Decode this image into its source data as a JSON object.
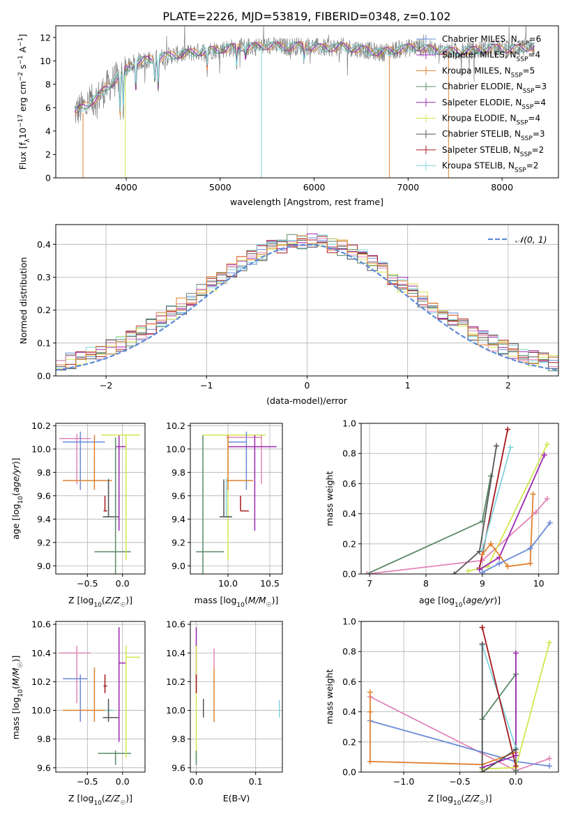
{
  "title": "PLATE=2226, MJD=53819, FIBERID=0348, z=0.102",
  "colors": {
    "chabrier_miles": "#6a8ad8",
    "salpeter_miles": "#a332c8",
    "kroupa_miles": "#e0812e",
    "chabrier_elodie": "#5a8a66",
    "salpeter_elodie": "#9b27b0",
    "kroupa_elodie": "#d4e64e",
    "chabrier_stelib": "#555555",
    "salpeter_stelib": "#a4161a",
    "kroupa_stelib": "#7fd4dc",
    "pink": "#e384b8",
    "gaussian": "#5b8bd9"
  },
  "chart_data": [
    {
      "id": "spectrum",
      "type": "line",
      "xlabel": "wavelength [Angstrom, rest frame]",
      "ylabel": "Flux [f_λ10^-17 erg cm^-2 s^-1 A^-1]",
      "xlim": [
        3250,
        8600
      ],
      "ylim": [
        0,
        13
      ],
      "xticks": [
        "4000",
        "5000",
        "6000",
        "7000",
        "8000"
      ],
      "yticks": [
        "0",
        "2",
        "4",
        "6",
        "8",
        "10",
        "12"
      ],
      "legend_position": "right",
      "legend": [
        "Chabrier MILES, N_SSP=6",
        "Salpeter MILES, N_SSP=4",
        "Kroupa MILES, N_SSP=5",
        "Chabrier ELODIE, N_SSP=3",
        "Salpeter ELODIE, N_SSP=4",
        "Kroupa ELODIE, N_SSP=4",
        "Chabrier STELIB, N_SSP=3",
        "Salpeter STELIB, N_SSP=2",
        "Kroupa STELIB, N_SSP=2"
      ],
      "continuum": {
        "x": [
          3450,
          3550,
          3700,
          3800,
          3900,
          4000,
          4100,
          4300,
          4500,
          4700,
          4900,
          5100,
          5300,
          5500,
          5700,
          5900,
          6100,
          6300,
          6500,
          6700,
          6900,
          7100,
          7300,
          7500,
          7700,
          7900,
          8100,
          8300
        ],
        "y": [
          5.6,
          6.1,
          6.9,
          7.8,
          8.5,
          9.3,
          9.9,
          10.2,
          10.5,
          10.7,
          10.9,
          11.1,
          11.2,
          11.3,
          11.2,
          11.3,
          11.1,
          11.2,
          11.0,
          10.7,
          11.0,
          11.2,
          10.9,
          10.8,
          10.9,
          11.1,
          11.0,
          11.2
        ]
      }
    },
    {
      "id": "residuals",
      "type": "line",
      "xlabel": "(data-model)/error",
      "ylabel": "Normed distribution",
      "xlim": [
        -2.5,
        2.5
      ],
      "ylim": [
        0,
        0.46
      ],
      "xticks": [
        "−2",
        "−1",
        "0",
        "1",
        "2"
      ],
      "yticks": [
        "0.0",
        "0.1",
        "0.2",
        "0.3",
        "0.4"
      ],
      "legend": [
        "𝒩(0, 1)"
      ],
      "gaussian": {
        "mean": 0,
        "sigma": 1
      }
    },
    {
      "id": "age_vs_Z",
      "type": "errorbar",
      "xlabel": "Z [log10(Z/Z☉)]",
      "ylabel": "age  [log10(age/yr)]",
      "xlim": [
        -0.95,
        0.32
      ],
      "ylim": [
        8.93,
        10.22
      ],
      "xticks": [
        -0.5,
        0.0
      ],
      "xticklabels": [
        "−0.5",
        "0.0"
      ],
      "yticks": [
        9.0,
        9.2,
        9.4,
        9.6,
        9.8,
        10.0,
        10.2
      ],
      "yticklabels": [
        "9.0",
        "9.2",
        "9.4",
        "9.6",
        "9.8",
        "10.0",
        "10.2"
      ],
      "points": [
        {
          "c": "pink",
          "x": -0.65,
          "y": 10.09,
          "xe": [
            -0.9,
            -0.45
          ],
          "ye": [
            9.7,
            10.13
          ]
        },
        {
          "c": "chabrier_miles",
          "x": -0.6,
          "y": 10.06,
          "xe": [
            -0.85,
            -0.25
          ],
          "ye": [
            9.65,
            10.15
          ]
        },
        {
          "c": "kroupa_miles",
          "x": -0.4,
          "y": 9.73,
          "xe": [
            -0.85,
            -0.15
          ],
          "ye": [
            9.65,
            10.12
          ]
        },
        {
          "c": "salpeter_stelib",
          "x": -0.25,
          "y": 9.47,
          "xe": [
            -0.27,
            -0.22
          ],
          "ye": [
            9.47,
            9.6
          ]
        },
        {
          "c": "kroupa_stelib",
          "x": -0.2,
          "y": 9.42,
          "xe": [
            -0.28,
            -0.15
          ],
          "ye": [
            9.42,
            9.75
          ]
        },
        {
          "c": "chabrier_stelib",
          "x": -0.2,
          "y": 9.42,
          "xe": [
            -0.28,
            -0.05
          ],
          "ye": [
            9.42,
            9.74
          ]
        },
        {
          "c": "salpeter_elodie",
          "x": -0.05,
          "y": 10.02,
          "xe": [
            -0.1,
            0.05
          ],
          "ye": [
            9.3,
            10.12
          ]
        },
        {
          "c": "chabrier_elodie",
          "x": -0.1,
          "y": 9.12,
          "xe": [
            -0.4,
            0.12
          ],
          "ye": [
            8.93,
            10.1
          ]
        },
        {
          "c": "kroupa_elodie",
          "x": 0.05,
          "y": 10.12,
          "xe": [
            -0.3,
            0.25
          ],
          "ye": [
            9.05,
            10.12
          ]
        }
      ]
    },
    {
      "id": "age_vs_mass",
      "type": "errorbar",
      "xlabel": "mass [log10(M/M☉)]",
      "ylabel": "",
      "xlim": [
        9.55,
        10.65
      ],
      "ylim": [
        8.93,
        10.22
      ],
      "xticks": [
        10.0,
        10.5
      ],
      "xticklabels": [
        "10.0",
        "10.5"
      ],
      "yticks": [
        9.0,
        9.2,
        9.4,
        9.6,
        9.8,
        10.0,
        10.2
      ],
      "yticklabels": [
        "9.0",
        "9.2",
        "9.4",
        "9.6",
        "9.8",
        "10.0",
        "10.2"
      ],
      "points": [
        {
          "c": "chabrier_elodie",
          "x": 9.7,
          "y": 9.12,
          "xe": [
            9.62,
            9.95
          ],
          "ye": [
            8.93,
            10.12
          ]
        },
        {
          "c": "kroupa_elodie",
          "x": 10.0,
          "y": 10.12,
          "xe": [
            9.7,
            10.45
          ],
          "ye": [
            9.05,
            10.12
          ]
        },
        {
          "c": "pink",
          "x": 10.4,
          "y": 10.1,
          "xe": [
            9.98,
            10.4
          ],
          "ye": [
            9.7,
            10.12
          ]
        },
        {
          "c": "chabrier_miles",
          "x": 10.22,
          "y": 10.06,
          "xe": [
            10.0,
            10.22
          ],
          "ye": [
            9.65,
            10.15
          ]
        },
        {
          "c": "salpeter_elodie",
          "x": 10.32,
          "y": 10.02,
          "xe": [
            10.0,
            10.58
          ],
          "ye": [
            9.3,
            10.12
          ]
        },
        {
          "c": "kroupa_miles",
          "x": 10.0,
          "y": 9.73,
          "xe": [
            9.98,
            10.3
          ],
          "ye": [
            9.65,
            10.12
          ]
        },
        {
          "c": "kroupa_stelib",
          "x": 9.98,
          "y": 9.42,
          "xe": [
            9.9,
            10.05
          ],
          "ye": [
            9.42,
            9.75
          ]
        },
        {
          "c": "chabrier_stelib",
          "x": 9.95,
          "y": 9.42,
          "xe": [
            9.9,
            10.05
          ],
          "ye": [
            9.42,
            9.74
          ]
        },
        {
          "c": "salpeter_stelib",
          "x": 10.15,
          "y": 9.47,
          "xe": [
            10.15,
            10.25
          ],
          "ye": [
            9.47,
            9.6
          ]
        }
      ]
    },
    {
      "id": "weight_vs_age",
      "type": "line",
      "xlabel": "age  [log10(age/yr)]",
      "ylabel": "mass weight",
      "xlim": [
        6.85,
        10.35
      ],
      "ylim": [
        0,
        1.0
      ],
      "xticks": [
        7,
        8,
        9,
        10
      ],
      "xticklabels": [
        "7",
        "8",
        "9",
        "10"
      ],
      "yticks": [
        0,
        0.2,
        0.4,
        0.6,
        0.8,
        1.0
      ],
      "yticklabels": [
        "0.0",
        "0.2",
        "0.4",
        "0.6",
        "0.8",
        "1.0"
      ],
      "series": [
        {
          "c": "chabrier_elodie",
          "x": [
            6.95,
            9.0,
            9.15
          ],
          "y": [
            0.0,
            0.35,
            0.65
          ]
        },
        {
          "c": "pink",
          "x": [
            6.95,
            9.0,
            9.95,
            10.15
          ],
          "y": [
            0.0,
            0.09,
            0.41,
            0.5
          ]
        },
        {
          "c": "chabrier_stelib",
          "x": [
            8.5,
            8.95,
            9.25
          ],
          "y": [
            0.0,
            0.15,
            0.85
          ]
        },
        {
          "c": "salpeter_stelib",
          "x": [
            8.95,
            9.45
          ],
          "y": [
            0.04,
            0.96
          ]
        },
        {
          "c": "kroupa_stelib",
          "x": [
            9.0,
            9.5
          ],
          "y": [
            0.16,
            0.84
          ]
        },
        {
          "c": "kroupa_elodie",
          "x": [
            8.75,
            9.1,
            10.15
          ],
          "y": [
            0.02,
            0.05,
            0.86
          ]
        },
        {
          "c": "salpeter_elodie",
          "x": [
            8.95,
            9.3,
            10.1
          ],
          "y": [
            0.03,
            0.11,
            0.79
          ]
        },
        {
          "c": "kroupa_miles",
          "x": [
            9.0,
            9.15,
            9.45,
            9.85,
            9.9
          ],
          "y": [
            0.13,
            0.2,
            0.05,
            0.07,
            0.53
          ]
        },
        {
          "c": "chabrier_miles",
          "x": [
            9.0,
            9.3,
            9.85,
            10.2
          ],
          "y": [
            0.01,
            0.07,
            0.17,
            0.34
          ]
        }
      ]
    },
    {
      "id": "mass_vs_Z",
      "type": "errorbar",
      "xlabel": "Z [log10(Z/Z☉)]",
      "ylabel": "mass [log10(M/M☉)]",
      "xlim": [
        -0.95,
        0.32
      ],
      "ylim": [
        9.57,
        10.62
      ],
      "xticks": [
        -0.5,
        0.0
      ],
      "xticklabels": [
        "−0.5",
        "0.0"
      ],
      "yticks": [
        9.6,
        9.8,
        10.0,
        10.2,
        10.4,
        10.6
      ],
      "yticklabels": [
        "9.6",
        "9.8",
        "10.0",
        "10.2",
        "10.4",
        "10.6"
      ],
      "points": [
        {
          "c": "pink",
          "x": -0.65,
          "y": 10.4,
          "xe": [
            -0.9,
            -0.45
          ],
          "ye": [
            10.05,
            10.45
          ]
        },
        {
          "c": "chabrier_miles",
          "x": -0.6,
          "y": 10.22,
          "xe": [
            -0.85,
            -0.5
          ],
          "ye": [
            9.92,
            10.25
          ]
        },
        {
          "c": "kroupa_miles",
          "x": -0.4,
          "y": 10.0,
          "xe": [
            -0.85,
            -0.15
          ],
          "ye": [
            9.92,
            10.3
          ]
        },
        {
          "c": "salpeter_stelib",
          "x": -0.25,
          "y": 10.17,
          "xe": [
            -0.27,
            -0.22
          ],
          "ye": [
            10.12,
            10.25
          ]
        },
        {
          "c": "kroupa_stelib",
          "x": -0.2,
          "y": 10.0,
          "xe": [
            -0.25,
            -0.12
          ],
          "ye": [
            9.95,
            10.05
          ]
        },
        {
          "c": "chabrier_stelib",
          "x": -0.2,
          "y": 9.95,
          "xe": [
            -0.28,
            -0.05
          ],
          "ye": [
            9.92,
            10.08
          ]
        },
        {
          "c": "salpeter_elodie",
          "x": -0.05,
          "y": 10.33,
          "xe": [
            -0.05,
            0.05
          ],
          "ye": [
            9.78,
            10.58
          ]
        },
        {
          "c": "chabrier_elodie",
          "x": -0.1,
          "y": 9.7,
          "xe": [
            -0.35,
            0.12
          ],
          "ye": [
            9.62,
            9.72
          ]
        },
        {
          "c": "kroupa_elodie",
          "x": 0.05,
          "y": 10.37,
          "xe": [
            0.05,
            0.25
          ],
          "ye": [
            9.67,
            10.45
          ]
        }
      ]
    },
    {
      "id": "mass_vs_ebv",
      "type": "errorbar",
      "xlabel": "E(B-V)",
      "ylabel": "",
      "xlim": [
        -0.01,
        0.145
      ],
      "ylim": [
        9.57,
        10.62
      ],
      "xticks": [
        0.0,
        0.1
      ],
      "xticklabels": [
        "0.0",
        "0.1"
      ],
      "yticks": [
        9.6,
        9.8,
        10.0,
        10.2,
        10.4,
        10.6
      ],
      "yticklabels": [
        "9.6",
        "9.8",
        "10.0",
        "10.2",
        "10.4",
        "10.6"
      ],
      "points": [
        {
          "c": "salpeter_elodie",
          "x": 0.0,
          "y": 10.33,
          "xe": [
            0.0,
            0.0
          ],
          "ye": [
            10.2,
            10.58
          ]
        },
        {
          "c": "kroupa_elodie",
          "x": 0.0,
          "y": 10.37,
          "xe": [
            0.0,
            0.0
          ],
          "ye": [
            9.67,
            10.45
          ]
        },
        {
          "c": "chabrier_elodie",
          "x": 0.0,
          "y": 9.7,
          "xe": [
            0.0,
            0.0
          ],
          "ye": [
            9.62,
            9.72
          ]
        },
        {
          "c": "salpeter_stelib",
          "x": 0.0,
          "y": 10.17,
          "xe": [
            0.0,
            0.0
          ],
          "ye": [
            10.12,
            10.25
          ]
        },
        {
          "c": "chabrier_stelib",
          "x": 0.012,
          "y": 10.0,
          "xe": [
            0.012,
            0.012
          ],
          "ye": [
            9.95,
            10.08
          ]
        },
        {
          "c": "pink",
          "x": 0.03,
          "y": 10.4,
          "xe": [
            0.03,
            0.03
          ],
          "ye": [
            10.3,
            10.43
          ]
        },
        {
          "c": "kroupa_miles",
          "x": 0.03,
          "y": 10.0,
          "xe": [
            0.03,
            0.03
          ],
          "ye": [
            9.92,
            10.3
          ]
        },
        {
          "c": "kroupa_stelib",
          "x": 0.14,
          "y": 10.0,
          "xe": [
            0.14,
            0.14
          ],
          "ye": [
            9.95,
            10.07
          ]
        }
      ]
    },
    {
      "id": "weight_vs_Z",
      "type": "line",
      "xlabel": "Z [log10(Z/Z☉)]",
      "ylabel": "mass weight",
      "xlim": [
        -1.38,
        0.38
      ],
      "ylim": [
        0,
        1.0
      ],
      "xticks": [
        -1.0,
        -0.5,
        0.0
      ],
      "xticklabels": [
        "−1.0",
        "−0.5",
        "0.0"
      ],
      "yticks": [
        0,
        0.2,
        0.4,
        0.6,
        0.8,
        1.0
      ],
      "yticklabels": [
        "0.0",
        "0.2",
        "0.4",
        "0.6",
        "0.8",
        "1.0"
      ],
      "series": [
        {
          "c": "pink",
          "x": [
            -1.3,
            0.0,
            0.3
          ],
          "y": [
            0.5,
            0.01,
            0.09
          ]
        },
        {
          "c": "chabrier_miles",
          "x": [
            -1.3,
            0.0,
            0.3
          ],
          "y": [
            0.34,
            0.07,
            0.04
          ]
        },
        {
          "c": "kroupa_miles",
          "x": [
            -1.3,
            -1.3,
            -1.3,
            -0.3,
            0.0
          ],
          "y": [
            0.53,
            0.4,
            0.07,
            0.05,
            0.13
          ]
        },
        {
          "c": "kroupa_elodie",
          "x": [
            -0.3,
            0.0,
            0.3
          ],
          "y": [
            0.02,
            0.03,
            0.86
          ]
        },
        {
          "c": "chabrier_elodie",
          "x": [
            -0.3,
            -0.3,
            0.0,
            0.0
          ],
          "y": [
            0.0,
            0.35,
            0.65,
            0.01
          ]
        },
        {
          "c": "salpeter_elodie",
          "x": [
            0.0,
            0.0,
            -0.3
          ],
          "y": [
            0.79,
            0.11,
            0.03
          ]
        },
        {
          "c": "kroupa_stelib",
          "x": [
            -0.3,
            0.0
          ],
          "y": [
            0.84,
            0.16
          ]
        },
        {
          "c": "salpeter_stelib",
          "x": [
            -0.3,
            0.0
          ],
          "y": [
            0.96,
            0.04
          ]
        },
        {
          "c": "chabrier_stelib",
          "x": [
            -0.3,
            -0.3,
            0.0
          ],
          "y": [
            0.85,
            0.0,
            0.15
          ]
        }
      ]
    }
  ]
}
